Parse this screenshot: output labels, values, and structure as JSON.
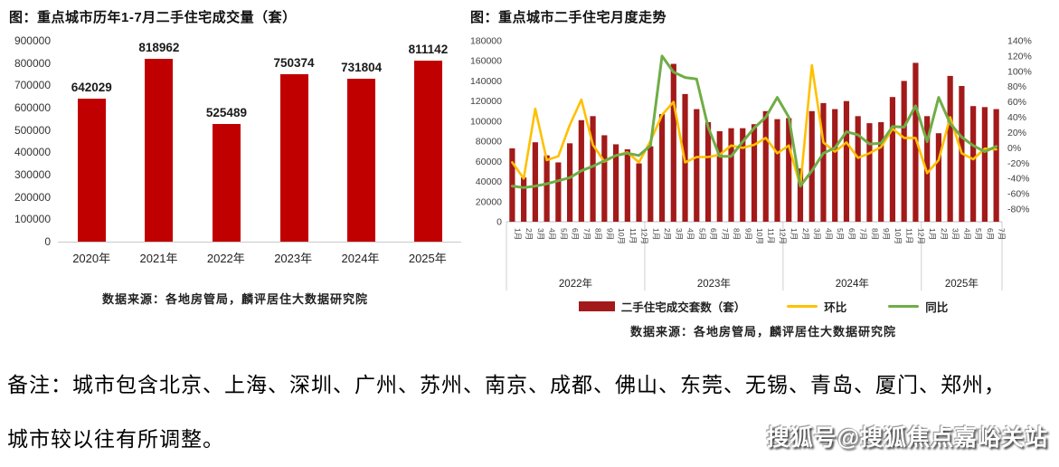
{
  "page": {
    "note_line1": "备注：城市包含北京、上海、深圳、广州、苏州、南京、成都、佛山、东莞、无锡、青岛、厦门、郑州，",
    "note_line2": "城市较以往有所调整。",
    "watermark": "搜狐号@搜狐焦点嘉峪关站"
  },
  "colors": {
    "bar_left": "#c00000",
    "bar_right": "#a31a1a",
    "line_huanbi": "#ffc000",
    "line_tongbi": "#70ad47",
    "axis_text": "#404040",
    "grid": "#cfcfcf"
  },
  "chart_data": [
    {
      "type": "bar",
      "title": "图：重点城市历年1-7月二手住宅成交量（套）",
      "source": "数据来源：各地房管局，麟评居住大数据研究院",
      "categories": [
        "2020年",
        "2021年",
        "2022年",
        "2023年",
        "2024年",
        "2025年"
      ],
      "values": [
        642029,
        818962,
        525489,
        750374,
        731804,
        811142
      ],
      "ylim": [
        0,
        900000
      ],
      "y_tick_step": 100000,
      "data_labels": true,
      "grid": false,
      "legend_position": "none"
    },
    {
      "type": "bar+line",
      "title": "图：重点城市二手住宅月度走势",
      "source": "数据来源：各地房管局，麟评居住大数据研究院",
      "x_years": [
        {
          "label": "2022年",
          "months": 12
        },
        {
          "label": "2023年",
          "months": 12
        },
        {
          "label": "2024年",
          "months": 12
        },
        {
          "label": "2025年",
          "months": 7
        }
      ],
      "month_label_suffix": "月",
      "left_axis": {
        "min": 0,
        "max": 180000,
        "step": 20000
      },
      "right_axis": {
        "min": -80,
        "max": 140,
        "step": 20,
        "unit": "%"
      },
      "legend_position": "bottom",
      "series": [
        {
          "name": "二手住宅成交套数（套）",
          "type": "bar",
          "axis": "left",
          "values": [
            73000,
            44000,
            79000,
            66000,
            59000,
            78000,
            101000,
            105000,
            86000,
            77000,
            72000,
            58000,
            75000,
            107000,
            157000,
            127000,
            112000,
            99000,
            90000,
            93000,
            93000,
            97000,
            110000,
            102000,
            103000,
            53000,
            110000,
            118000,
            112000,
            120000,
            105000,
            98000,
            99000,
            124000,
            140000,
            158000,
            105000,
            88000,
            145000,
            135000,
            115000,
            114000,
            112000
          ]
        },
        {
          "name": "环比",
          "type": "line",
          "axis": "right",
          "values": [
            -19,
            -40,
            51,
            -16,
            -11,
            30,
            63,
            4,
            -18,
            -10,
            -6,
            -19,
            9,
            43,
            60,
            -19,
            -12,
            -12,
            -9,
            3,
            0,
            4,
            13,
            -7,
            3,
            -50,
            108,
            7,
            -5,
            7,
            -13,
            -7,
            1,
            25,
            13,
            13,
            -33,
            -16,
            40,
            -7,
            -15,
            -1,
            -2
          ]
        },
        {
          "name": "同比",
          "type": "line",
          "axis": "right",
          "values": [
            -50,
            -52,
            -50,
            -47,
            -43,
            -39,
            -30,
            -24,
            -17,
            -10,
            -7,
            -10,
            3,
            120,
            99,
            92,
            90,
            27,
            -11,
            -11,
            8,
            26,
            40,
            66,
            40,
            -50,
            -30,
            -7,
            0,
            21,
            17,
            5,
            6,
            28,
            27,
            55,
            8,
            66,
            32,
            14,
            3,
            -5,
            2
          ]
        }
      ]
    }
  ]
}
